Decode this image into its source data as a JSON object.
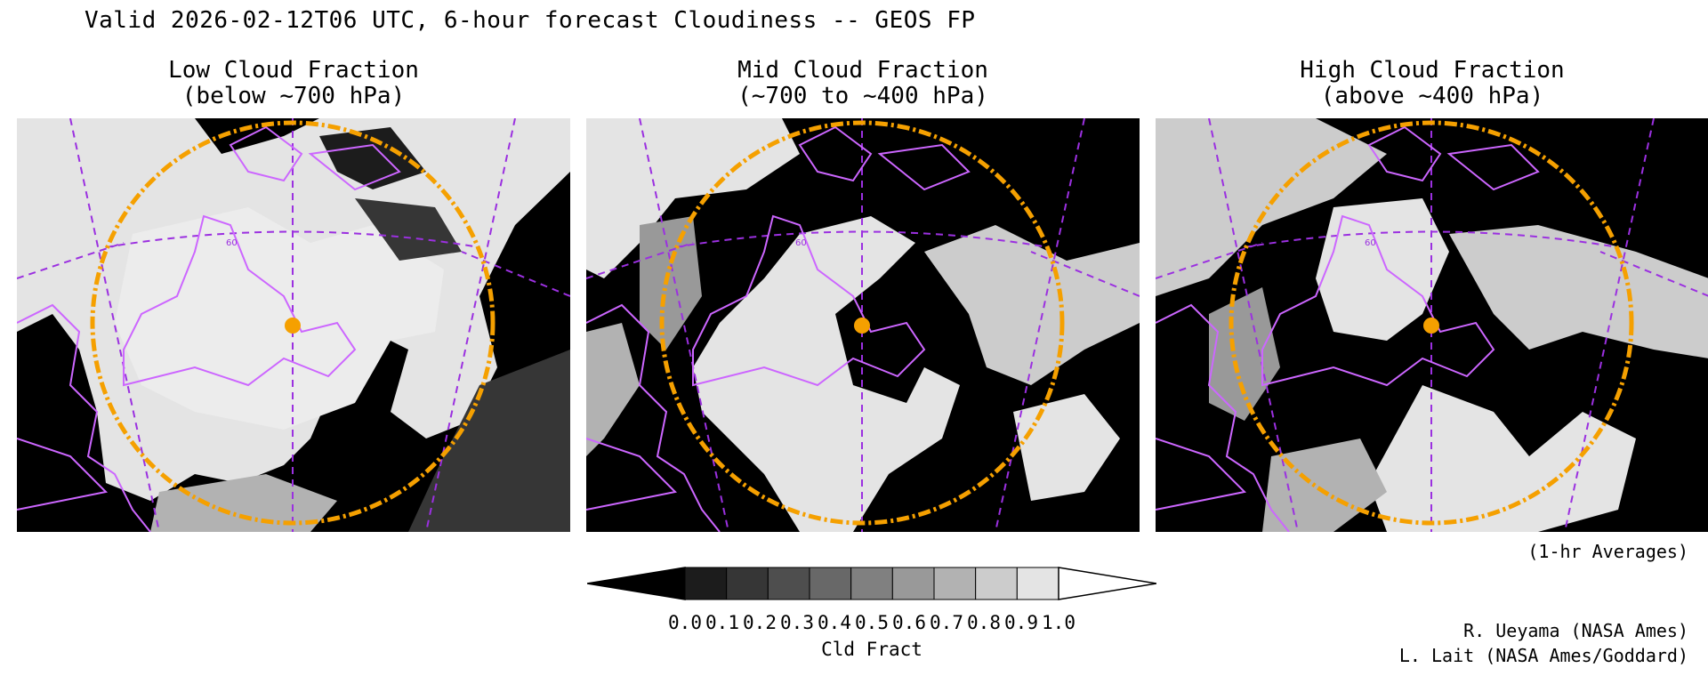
{
  "header": {
    "title": "Valid 2026-02-12T06 UTC, 6-hour forecast Cloudiness -- GEOS FP"
  },
  "panels": [
    {
      "title_line1": "Low Cloud Fraction",
      "title_line2": "(below ~700 hPa)",
      "lat_label": "60"
    },
    {
      "title_line1": "Mid Cloud Fraction",
      "title_line2": "(~700 to ~400 hPa)",
      "lat_label": "60"
    },
    {
      "title_line1": "High Cloud Fraction",
      "title_line2": "(above ~400 hPa)",
      "lat_label": "60"
    }
  ],
  "notes": {
    "averaging": "(1-hr Averages)"
  },
  "colorbar": {
    "label": "Cld Fract",
    "ticks": [
      "0.0",
      "0.1",
      "0.2",
      "0.3",
      "0.4",
      "0.5",
      "0.6",
      "0.7",
      "0.8",
      "0.9",
      "1.0"
    ],
    "colors": [
      "#000000",
      "#1c1c1c",
      "#363636",
      "#4e4e4e",
      "#686868",
      "#808080",
      "#999999",
      "#b2b2b2",
      "#cccccc",
      "#e4e4e4",
      "#ffffff"
    ]
  },
  "credits": {
    "line1": "R. Ueyama (NASA Ames)",
    "line2": "L. Lait (NASA Ames/Goddard)"
  },
  "style": {
    "range_ring_color": "#f5a000",
    "coastline_color": "#cc66ff",
    "grid_color": "#9b30e0",
    "site_marker_color": "#f5a000"
  }
}
